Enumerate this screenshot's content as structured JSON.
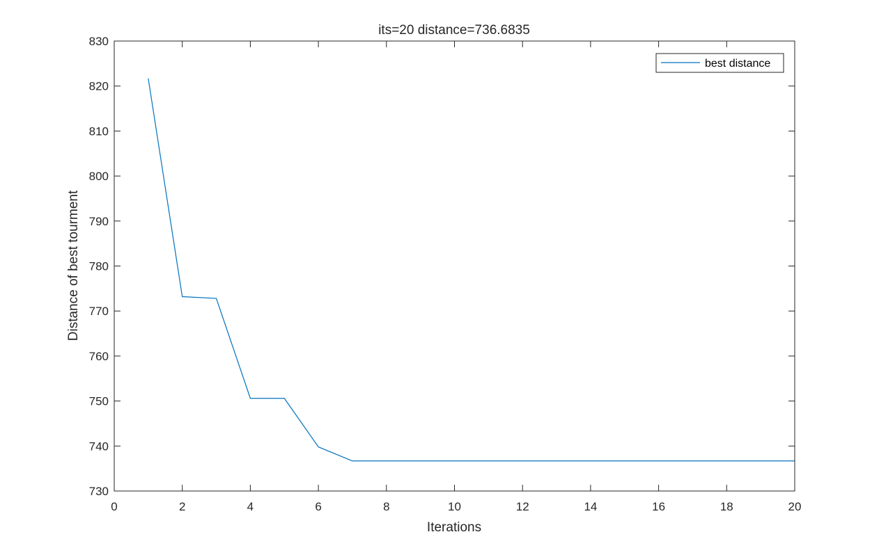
{
  "chart_data": {
    "type": "line",
    "title": "its=20  distance=736.6835",
    "xlabel": "Iterations",
    "ylabel": "Distance of best tourment",
    "xlim": [
      0,
      20
    ],
    "ylim": [
      730,
      830
    ],
    "xticks": [
      0,
      2,
      4,
      6,
      8,
      10,
      12,
      14,
      16,
      18,
      20
    ],
    "yticks": [
      730,
      740,
      750,
      760,
      770,
      780,
      790,
      800,
      810,
      820,
      830
    ],
    "grid": false,
    "legend_position": "top-right",
    "series": [
      {
        "name": "best distance",
        "color": "#0072BD",
        "x": [
          1,
          2,
          3,
          4,
          5,
          6,
          7,
          8,
          9,
          10,
          11,
          12,
          13,
          14,
          15,
          16,
          17,
          18,
          19,
          20
        ],
        "y": [
          821.7,
          773.2,
          772.8,
          750.6,
          750.6,
          739.8,
          736.6835,
          736.6835,
          736.6835,
          736.6835,
          736.6835,
          736.6835,
          736.6835,
          736.6835,
          736.6835,
          736.6835,
          736.6835,
          736.6835,
          736.6835,
          736.6835
        ]
      }
    ]
  }
}
